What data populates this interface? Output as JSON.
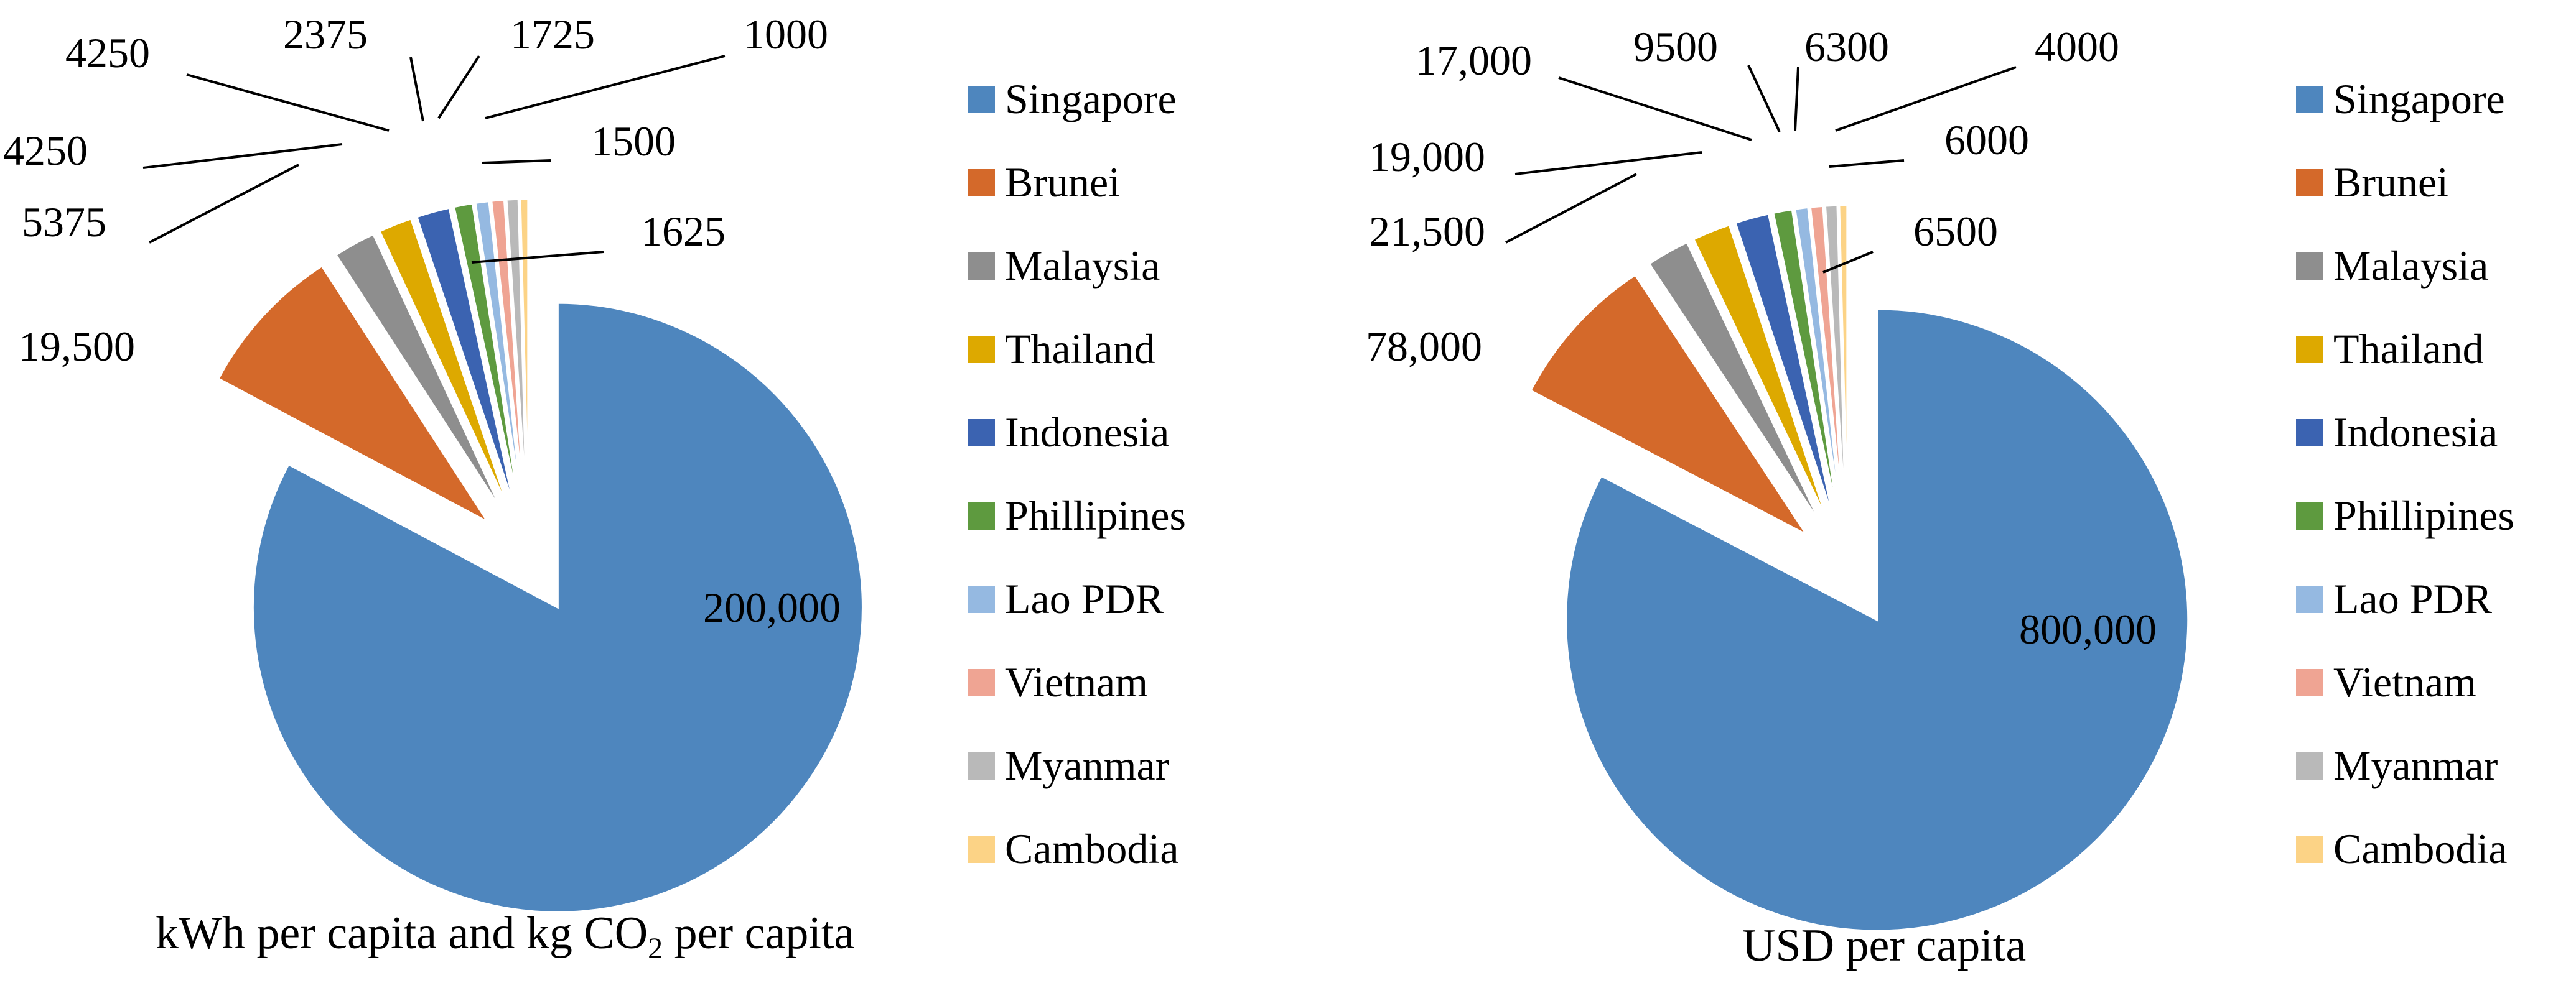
{
  "chart_data": [
    {
      "type": "pie",
      "title": "kWh per capita and kg CO2 per capita",
      "title_main": "kWh per capita and kg CO",
      "title_sub": "2",
      "title_tail": " per capita",
      "categories": [
        "Singapore",
        "Brunei",
        "Malaysia",
        "Thailand",
        "Indonesia",
        "Phillipines",
        "Lao PDR",
        "Vietnam",
        "Myanmar",
        "Cambodia"
      ],
      "values": [
        200000,
        19500,
        5375,
        4250,
        4250,
        2375,
        1725,
        1625,
        1500,
        1000
      ],
      "data_labels": [
        "200,000",
        "19,500",
        "5375",
        "4250",
        "4250",
        "2375",
        "1725",
        "1625",
        "1500",
        "1000"
      ],
      "legend_position": "right",
      "exploded": true
    },
    {
      "type": "pie",
      "title": "USD per capita",
      "categories": [
        "Singapore",
        "Brunei",
        "Malaysia",
        "Thailand",
        "Indonesia",
        "Phillipines",
        "Lao PDR",
        "Vietnam",
        "Myanmar",
        "Cambodia"
      ],
      "values": [
        800000,
        78000,
        21500,
        19000,
        17000,
        9500,
        6500,
        6300,
        6000,
        4000
      ],
      "data_labels": [
        "800,000",
        "78,000",
        "21,500",
        "19,000",
        "17,000",
        "9500",
        "6500",
        "6300",
        "6000",
        "4000"
      ],
      "legend_position": "right",
      "exploded": true
    }
  ],
  "colors": [
    "#4E86BE",
    "#D4692A",
    "#8E8E8E",
    "#DDA900",
    "#3B63B1",
    "#5E9A3F",
    "#95B9E1",
    "#EFA493",
    "#B9B9B9",
    "#FCD386"
  ]
}
